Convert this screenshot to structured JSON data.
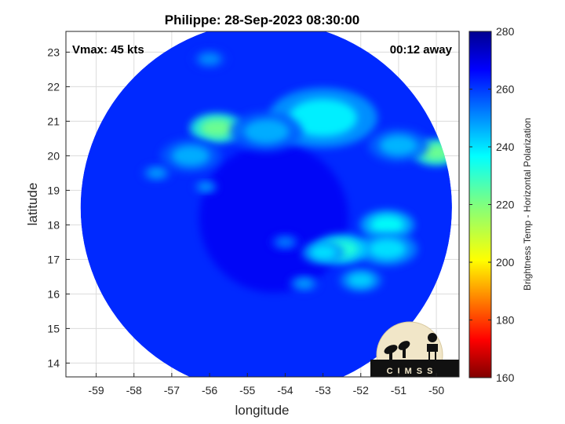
{
  "chart_data": {
    "type": "heatmap",
    "title": "Philippe: 28-Sep-2023 08:30:00",
    "xlabel": "longitude",
    "ylabel": "latitude",
    "xlim": [
      -59.8,
      -49.4
    ],
    "ylim": [
      13.6,
      23.6
    ],
    "xticks": [
      -59,
      -58,
      -57,
      -56,
      -55,
      -54,
      -53,
      -52,
      -51,
      -50
    ],
    "yticks": [
      14,
      15,
      16,
      17,
      18,
      19,
      20,
      21,
      22,
      23
    ],
    "grid": true,
    "annotations": {
      "left": "Vmax: 45 kts",
      "right": "00:12 away"
    },
    "swath_center": [
      -54.5,
      18.5
    ],
    "swath_radius_deg": 5.5,
    "colorbar": {
      "label": "Brightness Temp - Horizontal Polarization",
      "min": 160,
      "max": 280,
      "ticks": [
        160,
        180,
        200,
        220,
        240,
        260,
        280
      ],
      "colormap": "jet"
    },
    "background_value": 262,
    "features": [
      {
        "lon": -55.8,
        "lat": 20.8,
        "value": 222,
        "spread": 0.45
      },
      {
        "lon": -53.0,
        "lat": 21.1,
        "value": 238,
        "spread": 0.9
      },
      {
        "lon": -54.5,
        "lat": 20.7,
        "value": 246,
        "spread": 0.6
      },
      {
        "lon": -56.5,
        "lat": 20.0,
        "value": 246,
        "spread": 0.5
      },
      {
        "lon": -57.4,
        "lat": 19.5,
        "value": 248,
        "spread": 0.25
      },
      {
        "lon": -50.0,
        "lat": 20.1,
        "value": 222,
        "spread": 0.4
      },
      {
        "lon": -51.0,
        "lat": 20.3,
        "value": 245,
        "spread": 0.5
      },
      {
        "lon": -51.3,
        "lat": 18.0,
        "value": 236,
        "spread": 0.45
      },
      {
        "lon": -51.3,
        "lat": 17.3,
        "value": 240,
        "spread": 0.5
      },
      {
        "lon": -52.5,
        "lat": 17.3,
        "value": 232,
        "spread": 0.45
      },
      {
        "lon": -53.0,
        "lat": 17.2,
        "value": 240,
        "spread": 0.35
      },
      {
        "lon": -52.0,
        "lat": 16.4,
        "value": 242,
        "spread": 0.35
      },
      {
        "lon": -53.5,
        "lat": 16.3,
        "value": 248,
        "spread": 0.25
      },
      {
        "lon": -56.1,
        "lat": 19.1,
        "value": 248,
        "spread": 0.2
      },
      {
        "lon": -56.0,
        "lat": 22.8,
        "value": 250,
        "spread": 0.3
      },
      {
        "lon": -54.0,
        "lat": 17.5,
        "value": 252,
        "spread": 0.25
      }
    ]
  },
  "logo": {
    "text": "CIMSS"
  }
}
